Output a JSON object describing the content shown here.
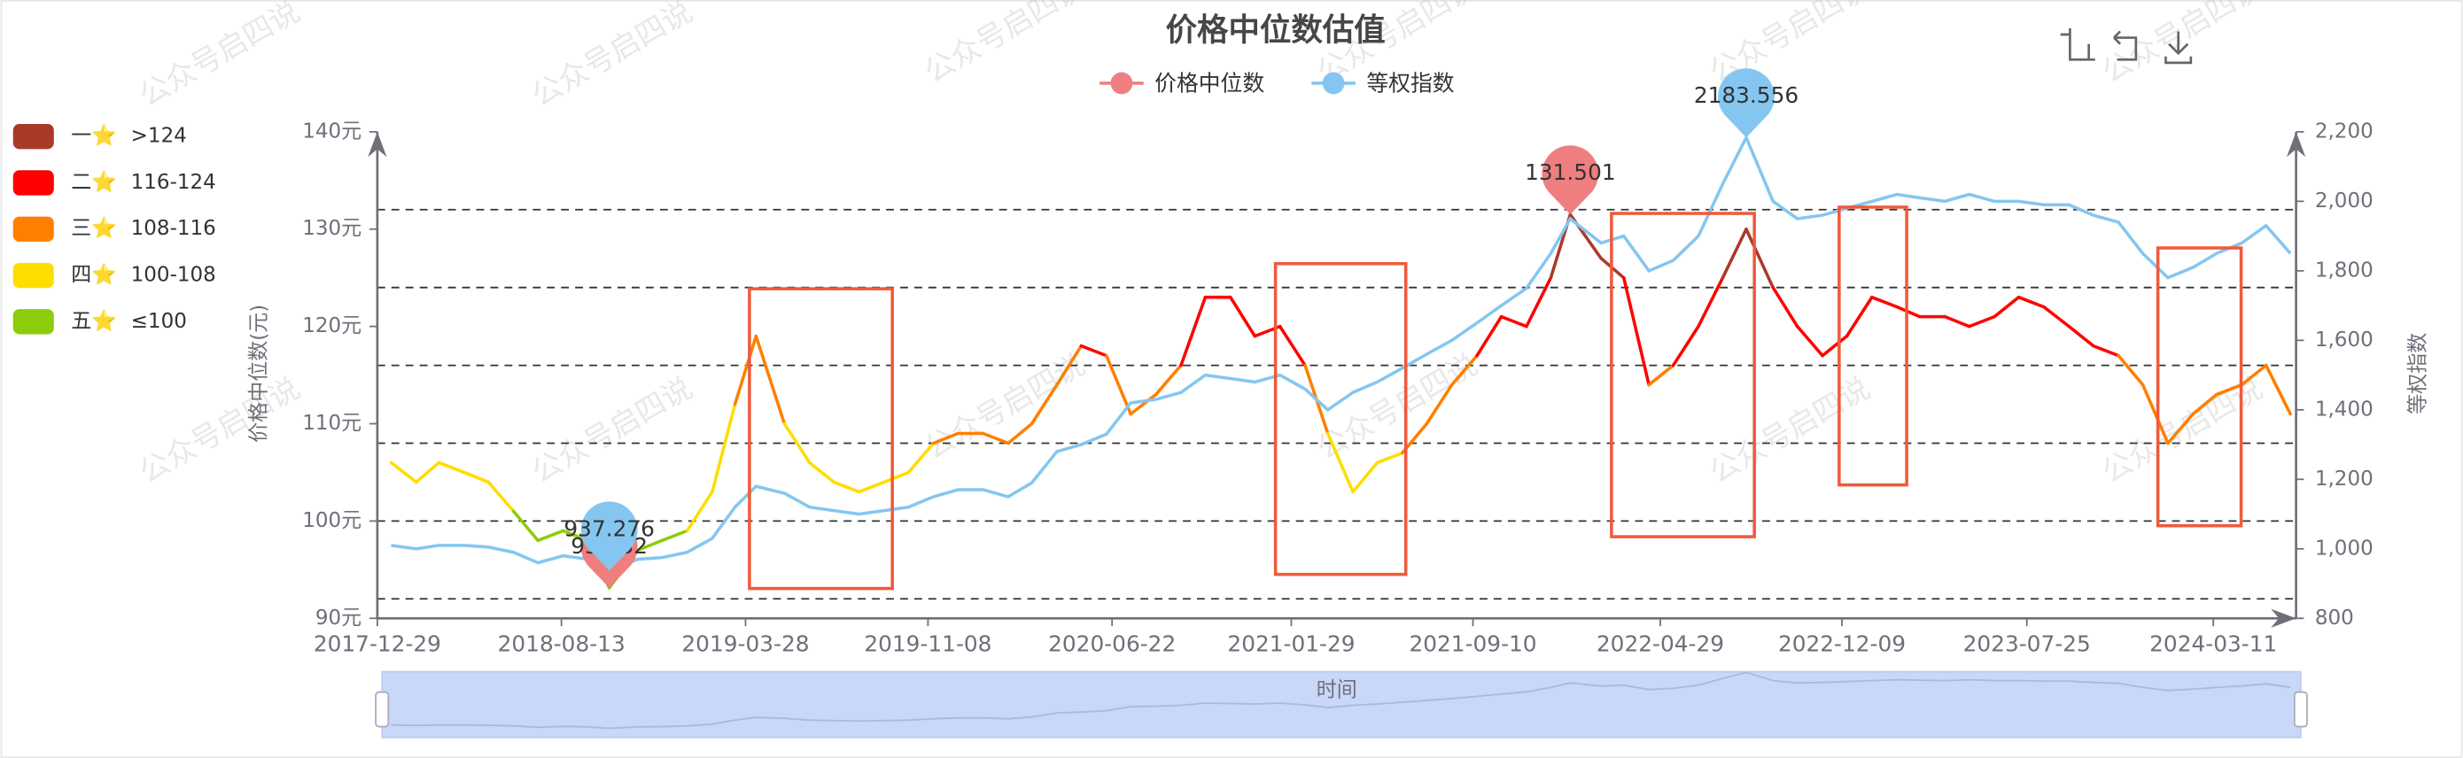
{
  "watermark": "公众号启四说",
  "chart_data": {
    "type": "line",
    "title": "价格中位数估值",
    "x_label": "时间",
    "y_label": "价格中位数(元)",
    "y2_label": "等权指数",
    "x": [
      "2018-01-15",
      "2018-02-15",
      "2018-03-15",
      "2018-04-15",
      "2018-05-15",
      "2018-06-15",
      "2018-07-15",
      "2018-08-15",
      "2018-09-15",
      "2018-10-11",
      "2018-11-15",
      "2018-12-15",
      "2019-01-15",
      "2019-02-15",
      "2019-03-15",
      "2019-04-10",
      "2019-05-15",
      "2019-06-15",
      "2019-07-15",
      "2019-08-15",
      "2019-09-15",
      "2019-10-15",
      "2019-11-15",
      "2019-12-15",
      "2020-01-15",
      "2020-02-15",
      "2020-03-15",
      "2020-04-15",
      "2020-05-15",
      "2020-06-15",
      "2020-07-15",
      "2020-08-15",
      "2020-09-15",
      "2020-10-15",
      "2020-11-15",
      "2020-12-15",
      "2021-01-15",
      "2021-02-15",
      "2021-03-15",
      "2021-04-15",
      "2021-05-15",
      "2021-06-15",
      "2021-07-15",
      "2021-08-15",
      "2021-09-15",
      "2021-10-15",
      "2021-11-15",
      "2021-12-15",
      "2022-01-08",
      "2022-02-15",
      "2022-03-15",
      "2022-04-15",
      "2022-05-15",
      "2022-06-15",
      "2022-07-15",
      "2022-08-13",
      "2022-09-15",
      "2022-10-15",
      "2022-11-15",
      "2022-12-15",
      "2023-01-15",
      "2023-02-15",
      "2023-03-15",
      "2023-04-15",
      "2023-05-15",
      "2023-06-15",
      "2023-07-15",
      "2023-08-15",
      "2023-09-15",
      "2023-10-15",
      "2023-11-15",
      "2023-12-15",
      "2024-01-15",
      "2024-02-15",
      "2024-03-15",
      "2024-04-15",
      "2024-05-15",
      "2024-06-14"
    ],
    "series": [
      {
        "name": "价格中位数",
        "color": "#ef7f7f",
        "mark_points": [
          "max",
          "min"
        ],
        "values": [
          106,
          104,
          106,
          105,
          104,
          101,
          98,
          99,
          98,
          93.132,
          97,
          98,
          99,
          103,
          112,
          119,
          110,
          106,
          104,
          103,
          104,
          105,
          108,
          109,
          109,
          108,
          110,
          114,
          118,
          117,
          111,
          113,
          116,
          123,
          123,
          119,
          120,
          116,
          109,
          103,
          106,
          107,
          110,
          114,
          117,
          121,
          120,
          125,
          131.501,
          127,
          125,
          114,
          116,
          120,
          125,
          130,
          124,
          120,
          117,
          119,
          123,
          122,
          121,
          121,
          120,
          121,
          123,
          122,
          120,
          118,
          117,
          114,
          108,
          111,
          113,
          114,
          116,
          111
        ]
      },
      {
        "name": "等权指数",
        "color": "#85c6f0",
        "axis": "y2",
        "mark_points": [
          "max",
          "min"
        ],
        "values": [
          1010,
          1000,
          1010,
          1010,
          1005,
          990,
          960,
          980,
          970,
          937.276,
          970,
          975,
          990,
          1030,
          1120,
          1180,
          1160,
          1120,
          1110,
          1100,
          1110,
          1120,
          1150,
          1170,
          1170,
          1150,
          1190,
          1280,
          1300,
          1330,
          1420,
          1430,
          1450,
          1500,
          1490,
          1480,
          1500,
          1460,
          1400,
          1450,
          1480,
          1520,
          1560,
          1600,
          1650,
          1700,
          1750,
          1850,
          1950,
          1880,
          1900,
          1800,
          1830,
          1900,
          2050,
          2183.556,
          2000,
          1950,
          1960,
          1980,
          2000,
          2020,
          2010,
          2000,
          2020,
          2000,
          2000,
          1990,
          1990,
          1960,
          1940,
          1850,
          1780,
          1810,
          1850,
          1880,
          1930,
          1850
        ]
      }
    ],
    "levels": [
      {
        "label": "一⭐",
        "range": ">124",
        "color": "#a93a2a",
        "min": 124
      },
      {
        "label": "二⭐",
        "range": "116-124",
        "color": "#ff0000",
        "min": 116
      },
      {
        "label": "三⭐",
        "range": "108-116",
        "color": "#ff7f00",
        "min": 108
      },
      {
        "label": "四⭐",
        "range": "100-108",
        "color": "#ffdd00",
        "min": 100
      },
      {
        "label": "五⭐",
        "range": "≤100",
        "color": "#8ccc0a",
        "min": null
      }
    ],
    "reference_lines": [
      92,
      100,
      108,
      116,
      124,
      132
    ],
    "xlim": [
      "2017-12-29",
      "2024-06-21"
    ],
    "xticks": [
      "2017-12-29",
      "2018-08-13",
      "2019-03-28",
      "2019-11-08",
      "2020-06-22",
      "2021-01-29",
      "2021-09-10",
      "2022-04-29",
      "2022-12-09",
      "2023-07-25",
      "2024-03-11"
    ],
    "ylim": [
      90,
      140
    ],
    "yticks": [
      {
        "value": 90,
        "label": "90元"
      },
      {
        "value": 100,
        "label": "100元"
      },
      {
        "value": 110,
        "label": "110元"
      },
      {
        "value": 120,
        "label": "120元"
      },
      {
        "value": 130,
        "label": "130元"
      },
      {
        "value": 140,
        "label": "140元"
      }
    ],
    "y2lim": [
      800,
      2200
    ],
    "y2ticks": [
      800,
      {
        "value": 1000,
        "label": "1,000"
      },
      {
        "value": 1200,
        "label": "1,200"
      },
      {
        "value": 1400,
        "label": "1,400"
      },
      {
        "value": 1600,
        "label": "1,600"
      },
      {
        "value": 1800,
        "label": "1,800"
      },
      {
        "value": 2000,
        "label": "2,000"
      },
      {
        "value": 2200,
        "label": "2,200"
      }
    ]
  }
}
